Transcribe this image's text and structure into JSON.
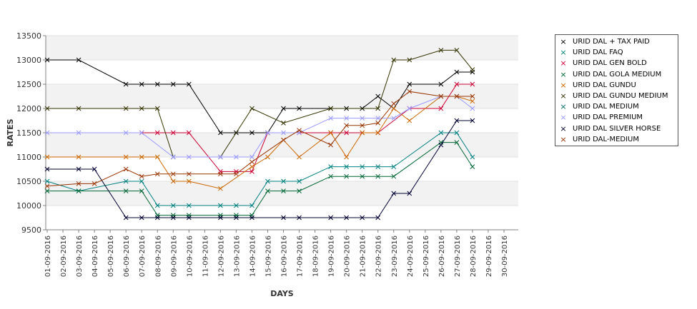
{
  "chart_data": {
    "type": "line",
    "xlabel": "DAYS",
    "ylabel": "RATES",
    "ylim": [
      9500,
      13500
    ],
    "yticks": [
      9500,
      10000,
      10500,
      11000,
      11500,
      12000,
      12500,
      13000,
      13500
    ],
    "grid": "horizontal alternating bands",
    "legend_position": "right",
    "categories": [
      "01-09-2016",
      "02-09-2016",
      "03-09-2016",
      "04-09-2016",
      "05-09-2016",
      "06-09-2016",
      "07-09-2016",
      "08-09-2016",
      "09-09-2016",
      "10-09-2016",
      "11-09-2016",
      "12-09-2016",
      "13-09-2016",
      "14-09-2016",
      "15-09-2016",
      "16-09-2016",
      "17-09-2016",
      "18-09-2016",
      "19-09-2016",
      "20-09-2016",
      "21-09-2016",
      "22-09-2016",
      "23-09-2016",
      "24-09-2016",
      "25-09-2016",
      "26-09-2016",
      "27-09-2016",
      "28-09-2016",
      "29-09-2016",
      "30-09-2016"
    ],
    "series": [
      {
        "name": "URID DAL + TAX PAID",
        "color": "#000000",
        "points": [
          [
            0,
            13000
          ],
          [
            2,
            13000
          ],
          [
            5,
            12500
          ],
          [
            6,
            12500
          ],
          [
            7,
            12500
          ],
          [
            8,
            12500
          ],
          [
            9,
            12500
          ],
          [
            11,
            11500
          ],
          [
            12,
            11500
          ],
          [
            13,
            11500
          ],
          [
            14,
            11500
          ],
          [
            15,
            12000
          ],
          [
            16,
            12000
          ],
          [
            18,
            12000
          ],
          [
            19,
            12000
          ],
          [
            20,
            12000
          ],
          [
            21,
            12250
          ],
          [
            22,
            12000
          ],
          [
            23,
            12500
          ],
          [
            25,
            12500
          ],
          [
            26,
            12750
          ],
          [
            27,
            12750
          ]
        ]
      },
      {
        "name": "URID DAL FAQ",
        "color": "#008080",
        "points": [
          [
            0,
            10500
          ],
          [
            2,
            10300
          ],
          [
            5,
            10500
          ],
          [
            6,
            10500
          ],
          [
            7,
            10000
          ],
          [
            8,
            10000
          ],
          [
            9,
            10000
          ],
          [
            11,
            10000
          ],
          [
            12,
            10000
          ],
          [
            13,
            10000
          ],
          [
            14,
            10500
          ],
          [
            15,
            10500
          ],
          [
            16,
            10500
          ],
          [
            18,
            10800
          ],
          [
            19,
            10800
          ],
          [
            20,
            10800
          ],
          [
            21,
            10800
          ],
          [
            22,
            10800
          ],
          [
            25,
            11500
          ],
          [
            26,
            11500
          ],
          [
            27,
            11000
          ]
        ]
      },
      {
        "name": "URID DAL GEN BOLD",
        "color": "#cc0033",
        "points": [
          [
            6,
            11500
          ],
          [
            7,
            11500
          ],
          [
            8,
            11500
          ],
          [
            9,
            11500
          ],
          [
            11,
            10700
          ],
          [
            12,
            10700
          ],
          [
            13,
            10700
          ],
          [
            14,
            11500
          ],
          [
            16,
            11500
          ],
          [
            18,
            11500
          ],
          [
            19,
            11500
          ],
          [
            20,
            11500
          ],
          [
            21,
            11500
          ],
          [
            23,
            12000
          ],
          [
            25,
            12000
          ],
          [
            26,
            12500
          ],
          [
            27,
            12500
          ]
        ]
      },
      {
        "name": "URID DAL GOLA MEDIUM",
        "color": "#006633",
        "points": [
          [
            0,
            10300
          ],
          [
            2,
            10300
          ],
          [
            5,
            10300
          ],
          [
            6,
            10300
          ],
          [
            7,
            9800
          ],
          [
            8,
            9800
          ],
          [
            9,
            9800
          ],
          [
            11,
            9800
          ],
          [
            12,
            9800
          ],
          [
            13,
            9800
          ],
          [
            14,
            10300
          ],
          [
            15,
            10300
          ],
          [
            16,
            10300
          ],
          [
            18,
            10600
          ],
          [
            19,
            10600
          ],
          [
            20,
            10600
          ],
          [
            21,
            10600
          ],
          [
            22,
            10600
          ],
          [
            25,
            11300
          ],
          [
            26,
            11300
          ],
          [
            27,
            10800
          ]
        ]
      },
      {
        "name": "URID DAL GUNDU",
        "color": "#cc6600",
        "points": [
          [
            0,
            11000
          ],
          [
            2,
            11000
          ],
          [
            5,
            11000
          ],
          [
            6,
            11000
          ],
          [
            7,
            11000
          ],
          [
            8,
            10500
          ],
          [
            9,
            10500
          ],
          [
            11,
            10350
          ],
          [
            13,
            10800
          ],
          [
            14,
            11000
          ],
          [
            15,
            11350
          ],
          [
            16,
            11000
          ],
          [
            18,
            11500
          ],
          [
            19,
            11000
          ],
          [
            20,
            11500
          ],
          [
            21,
            11500
          ],
          [
            22,
            12000
          ],
          [
            23,
            11750
          ],
          [
            25,
            12250
          ],
          [
            26,
            12250
          ],
          [
            27,
            12150
          ]
        ]
      },
      {
        "name": "URID DAL GUNDU MEDIUM",
        "color": "#333300",
        "points": [
          [
            0,
            12000
          ],
          [
            2,
            12000
          ],
          [
            5,
            12000
          ],
          [
            6,
            12000
          ],
          [
            7,
            12000
          ],
          [
            8,
            11000
          ],
          [
            11,
            11000
          ],
          [
            13,
            12000
          ],
          [
            15,
            11700
          ],
          [
            18,
            12000
          ],
          [
            21,
            12000
          ],
          [
            22,
            13000
          ],
          [
            23,
            13000
          ],
          [
            25,
            13200
          ],
          [
            26,
            13200
          ],
          [
            27,
            12800
          ]
        ]
      },
      {
        "name": "URID DAL MEDIUM",
        "color": "#006666",
        "points": []
      },
      {
        "name": "URID DAL PREMIUM",
        "color": "#9999ff",
        "points": [
          [
            0,
            11500
          ],
          [
            2,
            11500
          ],
          [
            5,
            11500
          ],
          [
            6,
            11500
          ],
          [
            8,
            11000
          ],
          [
            9,
            11000
          ],
          [
            11,
            11000
          ],
          [
            12,
            11000
          ],
          [
            13,
            11000
          ],
          [
            14,
            11500
          ],
          [
            15,
            11500
          ],
          [
            16,
            11500
          ],
          [
            18,
            11800
          ],
          [
            19,
            11800
          ],
          [
            20,
            11800
          ],
          [
            21,
            11800
          ],
          [
            22,
            11800
          ],
          [
            23,
            12000
          ],
          [
            25,
            12250
          ],
          [
            26,
            12250
          ],
          [
            27,
            12000
          ]
        ]
      },
      {
        "name": "URID DAL SILVER HORSE",
        "color": "#000033",
        "points": [
          [
            0,
            10750
          ],
          [
            2,
            10750
          ],
          [
            3,
            10750
          ],
          [
            5,
            9750
          ],
          [
            6,
            9750
          ],
          [
            7,
            9750
          ],
          [
            8,
            9750
          ],
          [
            9,
            9750
          ],
          [
            11,
            9750
          ],
          [
            12,
            9750
          ],
          [
            13,
            9750
          ],
          [
            15,
            9750
          ],
          [
            16,
            9750
          ],
          [
            18,
            9750
          ],
          [
            19,
            9750
          ],
          [
            20,
            9750
          ],
          [
            21,
            9750
          ],
          [
            22,
            10250
          ],
          [
            23,
            10250
          ],
          [
            25,
            11250
          ],
          [
            26,
            11750
          ],
          [
            27,
            11750
          ]
        ]
      },
      {
        "name": "URID DAL-MEDIUM",
        "color": "#993300",
        "points": [
          [
            0,
            10400
          ],
          [
            2,
            10450
          ],
          [
            3,
            10450
          ],
          [
            5,
            10750
          ],
          [
            6,
            10600
          ],
          [
            7,
            10650
          ],
          [
            8,
            10650
          ],
          [
            9,
            10650
          ],
          [
            11,
            10650
          ],
          [
            12,
            10650
          ],
          [
            13,
            10900
          ],
          [
            15,
            11350
          ],
          [
            16,
            11550
          ],
          [
            18,
            11250
          ],
          [
            19,
            11650
          ],
          [
            20,
            11650
          ],
          [
            21,
            11700
          ],
          [
            22,
            12100
          ],
          [
            23,
            12350
          ],
          [
            25,
            12250
          ],
          [
            26,
            12250
          ],
          [
            27,
            12250
          ]
        ]
      }
    ]
  }
}
